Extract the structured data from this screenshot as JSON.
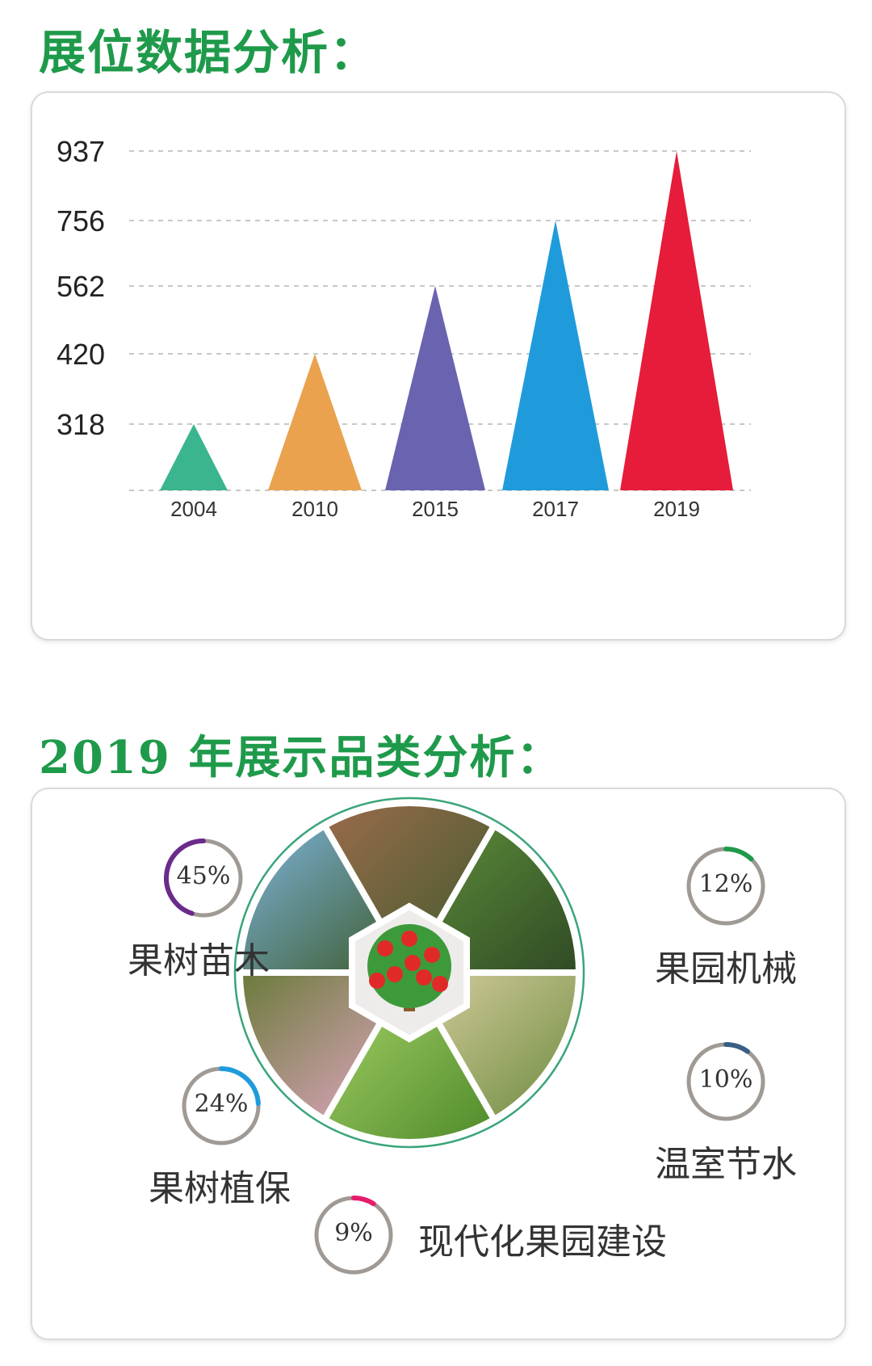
{
  "titles": {
    "booth": "展位数据分析：",
    "categories": "2019 年展示品类分析："
  },
  "chart_data": {
    "type": "bar",
    "categories": [
      "2004",
      "2010",
      "2015",
      "2017",
      "2019"
    ],
    "values": [
      318,
      420,
      562,
      756,
      937
    ],
    "yticks": [
      318,
      420,
      562,
      756,
      937
    ],
    "colors": [
      "#3bb58f",
      "#eaa24f",
      "#6a63b0",
      "#1f9bdc",
      "#e61c3a"
    ],
    "grid": true
  },
  "category_analysis": {
    "items": [
      {
        "label": "果树苗木",
        "percent": 45,
        "percent_text": "45%",
        "color": "#6a2b8a"
      },
      {
        "label": "果树植保",
        "percent": 24,
        "percent_text": "24%",
        "color": "#1f9bdc"
      },
      {
        "label": "果园机械",
        "percent": 12,
        "percent_text": "12%",
        "color": "#1f9a4b"
      },
      {
        "label": "温室节水",
        "percent": 10,
        "percent_text": "10%",
        "color": "#3a5f86"
      },
      {
        "label": "现代化果园建设",
        "percent": 9,
        "percent_text": "9%",
        "color": "#e61c6a"
      }
    ],
    "ring_track_color": "#a09a95"
  }
}
